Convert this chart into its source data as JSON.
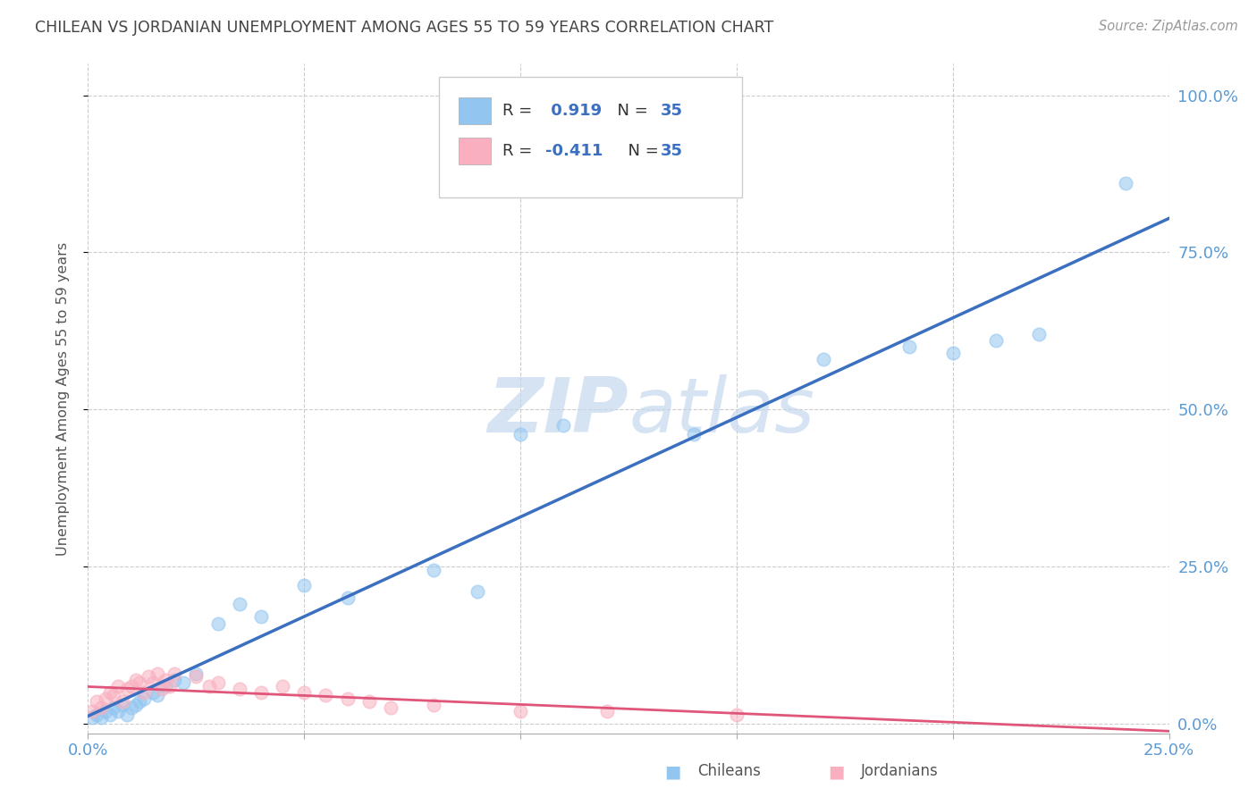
{
  "title": "CHILEAN VS JORDANIAN UNEMPLOYMENT AMONG AGES 55 TO 59 YEARS CORRELATION CHART",
  "source": "Source: ZipAtlas.com",
  "ylabel": "Unemployment Among Ages 55 to 59 years",
  "xlim": [
    0.0,
    0.25
  ],
  "ylim": [
    0.0,
    1.0
  ],
  "xticks": [
    0.0,
    0.05,
    0.1,
    0.15,
    0.2,
    0.25
  ],
  "yticks": [
    0.0,
    0.25,
    0.5,
    0.75,
    1.0
  ],
  "right_ytick_labels": [
    "0.0%",
    "25.0%",
    "50.0%",
    "75.0%",
    "100.0%"
  ],
  "xtick_labels": [
    "0.0%",
    "",
    "",
    "",
    "",
    "25.0%"
  ],
  "legend_chilean_R": "0.919",
  "legend_jordanian_R": "-0.411",
  "legend_N": "35",
  "chilean_color": "#92C5F0",
  "jordanian_color": "#F9AFBF",
  "chilean_line_color": "#3B6FBF",
  "jordanian_line_color": "#E0567A",
  "watermark_color": "#C5D8EE",
  "chileans_x": [
    0.001,
    0.002,
    0.003,
    0.004,
    0.005,
    0.006,
    0.007,
    0.008,
    0.009,
    0.01,
    0.011,
    0.012,
    0.013,
    0.015,
    0.016,
    0.018,
    0.02,
    0.022,
    0.025,
    0.03,
    0.035,
    0.04,
    0.05,
    0.06,
    0.08,
    0.09,
    0.1,
    0.11,
    0.14,
    0.17,
    0.19,
    0.2,
    0.21,
    0.22,
    0.24
  ],
  "chileans_y": [
    0.01,
    0.015,
    0.01,
    0.02,
    0.015,
    0.025,
    0.02,
    0.03,
    0.015,
    0.025,
    0.03,
    0.035,
    0.04,
    0.05,
    0.045,
    0.06,
    0.07,
    0.065,
    0.08,
    0.16,
    0.19,
    0.17,
    0.22,
    0.2,
    0.245,
    0.21,
    0.46,
    0.475,
    0.46,
    0.58,
    0.6,
    0.59,
    0.61,
    0.62,
    0.86
  ],
  "jordanians_x": [
    0.001,
    0.002,
    0.003,
    0.004,
    0.005,
    0.006,
    0.007,
    0.008,
    0.009,
    0.01,
    0.011,
    0.012,
    0.013,
    0.014,
    0.015,
    0.016,
    0.017,
    0.018,
    0.019,
    0.02,
    0.025,
    0.028,
    0.03,
    0.035,
    0.04,
    0.045,
    0.05,
    0.055,
    0.06,
    0.065,
    0.07,
    0.08,
    0.1,
    0.12,
    0.15
  ],
  "jordanians_y": [
    0.02,
    0.035,
    0.025,
    0.04,
    0.05,
    0.045,
    0.06,
    0.035,
    0.055,
    0.06,
    0.07,
    0.065,
    0.05,
    0.075,
    0.065,
    0.08,
    0.055,
    0.07,
    0.06,
    0.08,
    0.075,
    0.06,
    0.065,
    0.055,
    0.05,
    0.06,
    0.05,
    0.045,
    0.04,
    0.035,
    0.025,
    0.03,
    0.02,
    0.02,
    0.015
  ],
  "grid_color": "#CCCCCC",
  "bg_color": "#FFFFFF",
  "title_color": "#444444",
  "axis_label_color": "#555555",
  "tick_color": "#5B9BD5",
  "marker_size": 110
}
